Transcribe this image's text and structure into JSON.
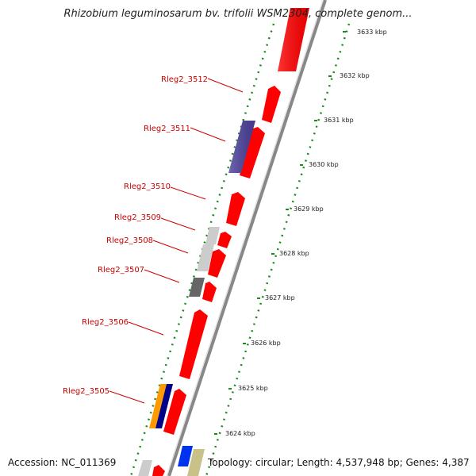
{
  "title": "Rhizobium leguminosarum bv. trifolii WSM2304, complete genom...",
  "footer": {
    "accession": "Accession: NC_011369",
    "summary": "Topology: circular; Length: 4,537,948 bp; Genes: 4,387"
  },
  "ticks": [
    "3624 kbp",
    "3625 kbp",
    "3626 kbp",
    "3627 kbp",
    "3628 kbp",
    "3629 kbp",
    "3630 kbp",
    "3631 kbp",
    "3632 kbp",
    "3633 kbp"
  ],
  "gene_labels": [
    "Rleg2_3505",
    "Rleg2_3506",
    "Rleg2_3507",
    "Rleg2_3508",
    "Rleg2_3509",
    "Rleg2_3510",
    "Rleg2_3511",
    "Rleg2_3512"
  ],
  "colors": {
    "cds": "#ff0000",
    "backbone": "#888888",
    "dotted_ring": "#1a8a1a",
    "label": "#cc0000",
    "purple": "#4b3f9a",
    "lightgray": "#cccccc",
    "darkgray": "#666666",
    "orange": "#ff9900",
    "navy": "#000088",
    "blue": "#0033ee",
    "khaki": "#c8c288"
  }
}
